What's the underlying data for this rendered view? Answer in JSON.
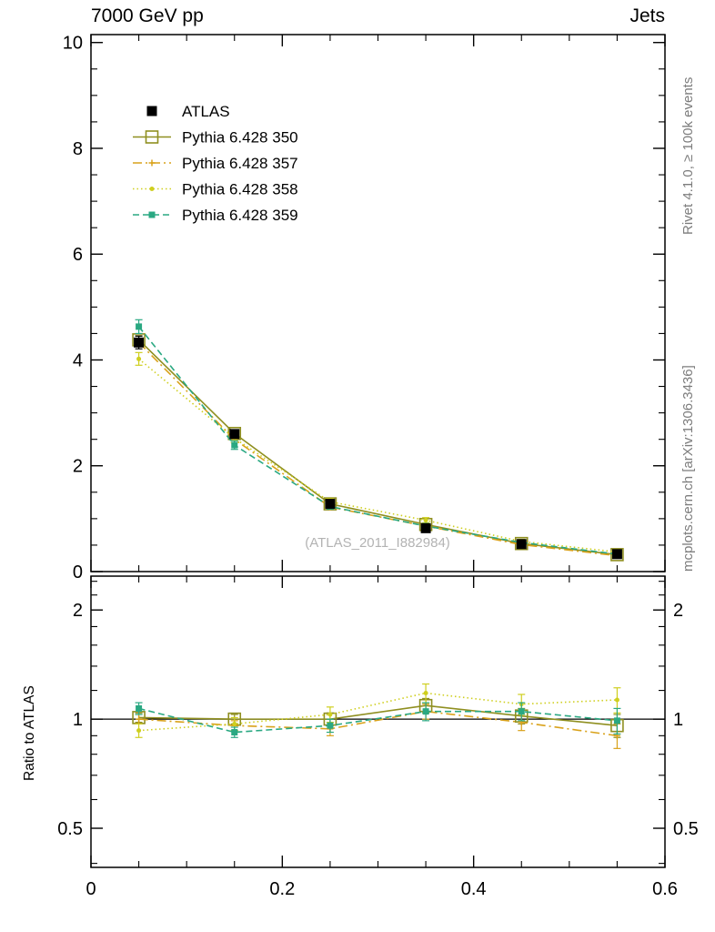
{
  "page": {
    "title_left": "7000 GeV pp",
    "title_right": "Jets",
    "rivet_label": "Rivet 4.1.0, ≥ 100k events",
    "mcplots_label": "mcplots.cern.ch [arXiv:1306.3436]",
    "watermark": "(ATLAS_2011_I882984)",
    "ratio_ylabel": "Ratio to ATLAS"
  },
  "chart_data": {
    "type": "line",
    "title": "7000 GeV pp — Jets",
    "xlabel": "",
    "x": [
      0.05,
      0.15,
      0.25,
      0.35,
      0.45,
      0.55
    ],
    "xlim": [
      0,
      0.6
    ],
    "x_ticks": {
      "major": [
        0,
        0.2,
        0.4,
        0.6
      ],
      "labels": [
        "0",
        "0.2",
        "0.4",
        "0.6"
      ],
      "minor_step": 0.05
    },
    "main_panel": {
      "ylim": [
        0,
        10.15
      ],
      "y_ticks": {
        "major": [
          0,
          2,
          4,
          6,
          8,
          10
        ],
        "labels": [
          "0",
          "2",
          "4",
          "6",
          "8",
          "10"
        ],
        "minor_step": 0.5
      }
    },
    "ratio_panel": {
      "yscale": "log",
      "ylim": [
        0.39,
        2.48
      ],
      "reference_line": 1,
      "y_ticks": {
        "major": [
          0.5,
          1,
          2
        ],
        "labels": [
          "0.5",
          "1",
          "2"
        ],
        "minor": [
          0.4,
          0.6,
          0.7,
          0.8,
          0.9,
          1.2,
          1.4,
          1.6,
          1.8,
          2.2,
          2.4
        ]
      }
    },
    "legend_position": "top-left",
    "series": [
      {
        "name": "ATLAS",
        "color": "#000000",
        "marker": "filled-square",
        "marker_size": 11,
        "line": "none",
        "dash": null,
        "main_values": [
          4.33,
          2.6,
          1.28,
          0.82,
          0.52,
          0.33
        ],
        "main_errors": [
          0.12,
          0.08,
          0.05,
          0.04,
          0.03,
          0.025
        ],
        "ratio_values": null,
        "ratio_errors": null
      },
      {
        "name": "Pythia 6.428 350",
        "color": "#8f8f20",
        "marker": "open-square",
        "marker_size": 13,
        "line": "solid",
        "dash": null,
        "main_values": [
          4.38,
          2.61,
          1.28,
          0.89,
          0.53,
          0.32
        ],
        "main_errors": [
          0.08,
          0.06,
          0.04,
          0.03,
          0.025,
          0.02
        ],
        "ratio_values": [
          1.01,
          1.0,
          1.0,
          1.09,
          1.02,
          0.96
        ],
        "ratio_errors": [
          0.03,
          0.03,
          0.04,
          0.05,
          0.05,
          0.07
        ]
      },
      {
        "name": "Pythia 6.428 357",
        "color": "#d9a21b",
        "marker": "plus",
        "marker_size": 7,
        "line": "dash-dot",
        "dash": "10 4 2 4",
        "main_values": [
          4.33,
          2.5,
          1.22,
          0.86,
          0.51,
          0.3
        ],
        "main_errors": [
          0.08,
          0.06,
          0.04,
          0.03,
          0.025,
          0.02
        ],
        "ratio_values": [
          1.0,
          0.96,
          0.94,
          1.05,
          0.98,
          0.9
        ],
        "ratio_errors": [
          0.03,
          0.03,
          0.04,
          0.05,
          0.05,
          0.07
        ]
      },
      {
        "name": "Pythia 6.428 358",
        "color": "#cfcf1f",
        "marker": "dot",
        "marker_size": 5,
        "line": "dotted",
        "dash": "1.5 3",
        "main_values": [
          4.02,
          2.52,
          1.32,
          0.97,
          0.57,
          0.37
        ],
        "main_errors": [
          0.12,
          0.08,
          0.06,
          0.05,
          0.04,
          0.03
        ],
        "ratio_values": [
          0.93,
          0.97,
          1.03,
          1.18,
          1.1,
          1.13
        ],
        "ratio_errors": [
          0.04,
          0.04,
          0.05,
          0.07,
          0.07,
          0.09
        ]
      },
      {
        "name": "Pythia 6.428 359",
        "color": "#2aa882",
        "marker": "filled-square",
        "marker_size": 7,
        "line": "dashed",
        "dash": "7 4",
        "main_values": [
          4.63,
          2.39,
          1.23,
          0.86,
          0.55,
          0.33
        ],
        "main_errors": [
          0.13,
          0.08,
          0.05,
          0.04,
          0.03,
          0.025
        ],
        "ratio_values": [
          1.07,
          0.92,
          0.96,
          1.05,
          1.05,
          0.99
        ],
        "ratio_errors": [
          0.04,
          0.03,
          0.04,
          0.06,
          0.06,
          0.08
        ]
      }
    ]
  }
}
